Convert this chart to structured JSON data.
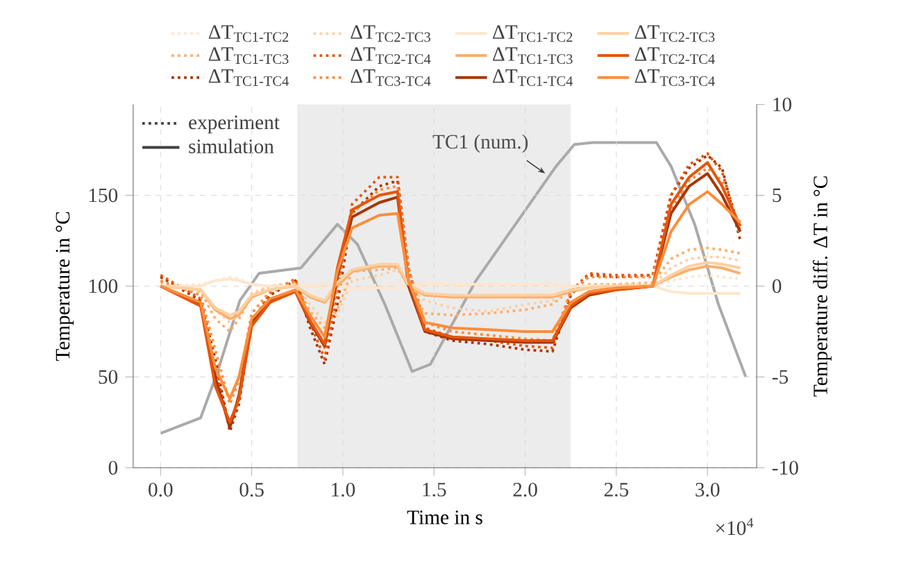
{
  "chart_data": {
    "type": "line",
    "xlabel": "Time in s",
    "ylabel": "Temperature in °C",
    "y2label": "Temperature diff. ΔT in °C",
    "x": [
      0,
      0.22,
      0.3,
      0.38,
      0.43,
      0.5,
      0.6,
      0.74,
      0.82,
      0.9,
      0.97,
      1.05,
      1.2,
      1.3,
      1.36,
      1.45,
      1.6,
      1.8,
      2.0,
      2.15,
      2.25,
      2.35,
      2.5,
      2.7,
      2.8,
      2.9,
      3.0,
      3.08,
      3.18
    ],
    "xlim": [
      -0.15,
      3.27
    ],
    "ylim": [
      0,
      200
    ],
    "y2lim": [
      -10,
      10
    ],
    "xticks": [
      {
        "value": 0,
        "label": "0.0"
      },
      0.5,
      {
        "value": 1,
        "label": "1.0"
      },
      1.5,
      {
        "value": 2,
        "label": "2.0"
      },
      2.5,
      {
        "value": 3,
        "label": "3.0"
      }
    ],
    "yticks": [
      0,
      50,
      100,
      150
    ],
    "y2ticks": [
      -10,
      -5,
      0,
      5,
      10
    ],
    "grid": true,
    "legend": "top",
    "marker": "none",
    "bands": [
      {
        "axis": "x",
        "from": 0.75,
        "to": 2.25,
        "color": "#ececec"
      }
    ],
    "annotations": [
      "experiment",
      "simulation",
      {
        "text": "TC1 (num.)",
        "x": 2.11,
        "y": 162
      },
      "×10$^{4}$"
    ],
    "series": [
      {
        "name": "ΔT$_{TC1-TC2}$",
        "color": "#fee6ce",
        "axis": "y2",
        "line_style": "dotted",
        "values": [
          0,
          0.1,
          0.3,
          0.5,
          0.4,
          0.1,
          0,
          0,
          0,
          -0.2,
          -0.6,
          -0.2,
          0.1,
          0.2,
          0.1,
          0.2,
          0.1,
          -0.3,
          -0.4,
          -0.3,
          0,
          0,
          0,
          0,
          0.3,
          0.5,
          0.6,
          0.5,
          0.4
        ]
      },
      {
        "name": "ΔT$_{TC1-TC3}$",
        "color": "#fdae6b",
        "axis": "y2",
        "line_style": "dotted",
        "values": [
          0.2,
          -0.3,
          -1.8,
          -2.5,
          -1.8,
          -0.5,
          0,
          0.2,
          -1.4,
          -2.3,
          -1.3,
          0.8,
          0.9,
          1.0,
          0,
          -1.5,
          -1.6,
          -1.5,
          -1.3,
          -1.0,
          -0.2,
          0.1,
          0.1,
          0.2,
          1.5,
          2.0,
          2.1,
          2.0,
          1.8
        ]
      },
      {
        "name": "ΔT$_{TC1-TC4}$",
        "color": "#a63603",
        "axis": "y2",
        "line_style": "dotted",
        "values": [
          0.5,
          -0.8,
          -4,
          -8,
          -6.5,
          -2,
          -0.5,
          0.3,
          -2.3,
          -4.3,
          -1,
          4,
          5.5,
          5.8,
          1,
          -2.5,
          -3.0,
          -3.2,
          -3.5,
          -3.6,
          -0.5,
          0.6,
          0.5,
          0.6,
          5,
          6.5,
          7.2,
          6.5,
          2.5
        ]
      },
      {
        "name": "ΔT$_{TC2-TC3}$",
        "color": "#fdd0a2",
        "axis": "y2",
        "line_style": "dotted",
        "values": [
          0,
          -0.2,
          -1.3,
          -2,
          -1.5,
          -0.4,
          0,
          0.1,
          -1.0,
          -2.0,
          -1.6,
          0.3,
          0.6,
          0.9,
          0,
          -0.8,
          -1.2,
          -1.4,
          -1.0,
          -0.8,
          -0.2,
          0,
          0.1,
          0.1,
          1.0,
          1.5,
          1.6,
          1.6,
          1.4
        ]
      },
      {
        "name": "ΔT$_{TC2-TC4}$",
        "color": "#e6550d",
        "axis": "y2",
        "line_style": "dotted",
        "values": [
          0.6,
          -0.7,
          -4.5,
          -7.8,
          -6.3,
          -2,
          -0.4,
          0.4,
          -2,
          -4,
          -0.5,
          4.5,
          6,
          6.0,
          1,
          -2.3,
          -2.8,
          -3.0,
          -3.3,
          -3.4,
          -0.3,
          0.7,
          0.6,
          0.6,
          5,
          6.7,
          7.3,
          6.3,
          3
        ]
      },
      {
        "name": "ΔT$_{TC3-TC4}$",
        "color": "#fd8d3c",
        "axis": "y2",
        "line_style": "dotted",
        "values": [
          0.3,
          -0.5,
          -3.5,
          -6.5,
          -5.2,
          -1.5,
          -0.3,
          0.3,
          -1.8,
          -3.4,
          0,
          4,
          5.3,
          5.5,
          1,
          -2.0,
          -2.5,
          -2.7,
          -2.9,
          -3.0,
          -0.3,
          0.5,
          0.5,
          0.5,
          4.2,
          5.8,
          6.5,
          5.8,
          2.8
        ]
      },
      {
        "name": "ΔT$_{TC1-TC2}$",
        "color": "#fee6ce",
        "axis": "y2",
        "line_style": "solid",
        "values": [
          0,
          0,
          0.3,
          0.4,
          0.3,
          0.1,
          0,
          0,
          0,
          0.1,
          0,
          -0.1,
          -0.1,
          -0.1,
          0,
          0.1,
          0.1,
          0.1,
          0.1,
          0.1,
          0,
          0,
          0,
          0,
          -0.3,
          -0.4,
          -0.4,
          -0.4,
          -0.4
        ]
      },
      {
        "name": "ΔT$_{TC1-TC3}$",
        "color": "#fdae6b",
        "axis": "y2",
        "line_style": "solid",
        "values": [
          0,
          -0.2,
          -1.3,
          -1.8,
          -1.6,
          -0.6,
          -0.2,
          0,
          -0.6,
          -0.9,
          0,
          0.8,
          1.1,
          1.1,
          0,
          -0.5,
          -0.6,
          -0.6,
          -0.6,
          -0.6,
          -0.3,
          -0.1,
          0,
          0,
          0.5,
          0.9,
          1.1,
          1.0,
          0.7
        ]
      },
      {
        "name": "ΔT$_{TC1-TC4}$",
        "color": "#a63603",
        "axis": "y2",
        "line_style": "solid",
        "values": [
          0,
          -1,
          -5,
          -7.8,
          -6,
          -2,
          -0.8,
          -0.3,
          -2,
          -3.3,
          0.5,
          3.8,
          4.6,
          4.9,
          0,
          -2.5,
          -2.9,
          -3.0,
          -3.1,
          -3.1,
          -1.2,
          -0.5,
          -0.2,
          0,
          4,
          5.5,
          6.2,
          5,
          3
        ]
      },
      {
        "name": "ΔT$_{TC2-TC3}$",
        "color": "#fdd0a2",
        "axis": "y2",
        "line_style": "solid",
        "values": [
          0,
          -0.2,
          -1.2,
          -1.6,
          -1.4,
          -0.5,
          -0.2,
          0,
          -0.5,
          -0.8,
          0.2,
          0.9,
          1.2,
          1.2,
          0.1,
          -0.4,
          -0.5,
          -0.5,
          -0.5,
          -0.5,
          -0.2,
          -0.1,
          0,
          0,
          0.6,
          1.1,
          1.3,
          1.2,
          1.0
        ]
      },
      {
        "name": "ΔT$_{TC2-TC4}$",
        "color": "#e6550d",
        "axis": "y2",
        "line_style": "solid",
        "values": [
          0,
          -1.1,
          -5.5,
          -7.5,
          -6.2,
          -2.2,
          -0.9,
          -0.3,
          -1.9,
          -3.2,
          1,
          4.2,
          5,
          5.2,
          0.3,
          -2.4,
          -2.8,
          -2.9,
          -3.0,
          -3.0,
          -1.1,
          -0.4,
          -0.2,
          0,
          4.5,
          6,
          6.8,
          5.5,
          3.3
        ]
      },
      {
        "name": "ΔT$_{TC3-TC4}$",
        "color": "#fd8d3c",
        "axis": "y2",
        "line_style": "solid",
        "values": [
          0,
          -0.9,
          -4.5,
          -6.2,
          -5,
          -1.8,
          -0.7,
          -0.2,
          -1.6,
          -2.8,
          0.8,
          3.2,
          3.9,
          4.0,
          0.3,
          -2.0,
          -2.3,
          -2.4,
          -2.5,
          -2.5,
          -0.9,
          -0.3,
          -0.1,
          0,
          3,
          4.5,
          5.2,
          4.5,
          3.5
        ]
      },
      {
        "color": "#aaaaaa",
        "axis": "y",
        "line_style": "solid",
        "x": [
          0,
          0.22,
          0.31,
          0.435,
          0.54,
          0.77,
          0.97,
          1.08,
          1.23,
          1.38,
          1.48,
          1.73,
          2.17,
          2.27,
          2.37,
          2.72,
          2.8,
          2.93,
          3.06,
          3.21
        ],
        "values": [
          19,
          27.5,
          52,
          92,
          107,
          110,
          134,
          123,
          90,
          53,
          57,
          103,
          166,
          178,
          179,
          179,
          166,
          134,
          90,
          50
        ]
      }
    ]
  }
}
